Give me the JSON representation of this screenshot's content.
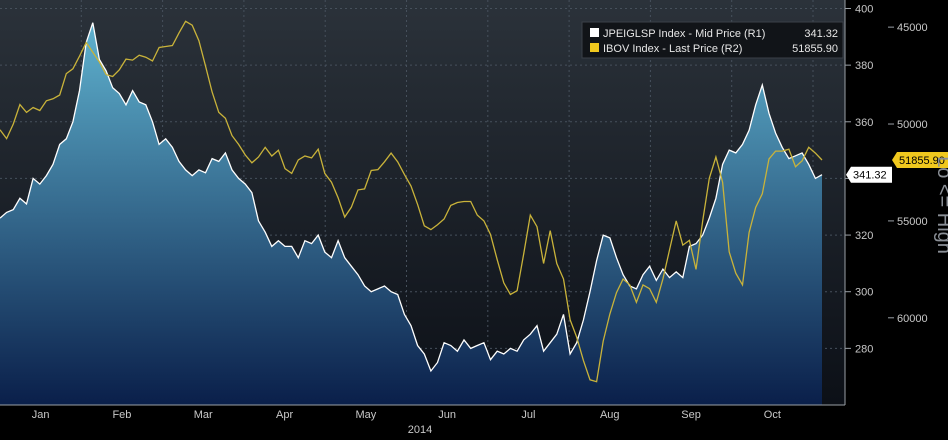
{
  "chart_data": {
    "type": "line",
    "colors": {
      "background_top": "#2b323a",
      "background_bottom": "#0c1017",
      "area_top": "#5fb2cf",
      "area_bottom": "#0a1f4a",
      "white_line": "#ffffff",
      "gold_line": "#c9b33a",
      "gold_badge": "#f0c81e",
      "grid": "#46505c"
    },
    "year_label": "2014",
    "months": [
      "Jan",
      "Feb",
      "Mar",
      "Apr",
      "May",
      "Jun",
      "Jul",
      "Aug",
      "Sep",
      "Oct"
    ],
    "left_axis": {
      "ticks": [
        "400",
        "380",
        "360",
        "340",
        "320",
        "300",
        "280"
      ],
      "range": [
        260,
        403
      ]
    },
    "right_axis": {
      "ticks": [
        "45000",
        "50000",
        "55000",
        "60000"
      ],
      "range": [
        64500,
        43600
      ],
      "inverted": true
    },
    "side_label": "Lo <= High",
    "series": [
      {
        "name": "JPEIGLSP Index - Mid Price (R1)",
        "last_value": "341.32",
        "axis": "left",
        "values": [
          326,
          328,
          329,
          333,
          331,
          340,
          338,
          341,
          345,
          352,
          354,
          360,
          371,
          388,
          395,
          382,
          378,
          372,
          370,
          366,
          371,
          367,
          366,
          360,
          352,
          354,
          351,
          346,
          343,
          341,
          343,
          342,
          347,
          346,
          349,
          343,
          340,
          338,
          335,
          325,
          321,
          316,
          318,
          316,
          316,
          312,
          318,
          317,
          320,
          314,
          312,
          318,
          312,
          309,
          306,
          302,
          300,
          301,
          302,
          300,
          299,
          292,
          288,
          281,
          278,
          272,
          275,
          282,
          281,
          279,
          283,
          280,
          281,
          282,
          276,
          279,
          278,
          280,
          279,
          283,
          285,
          288,
          279,
          282,
          285,
          292,
          278,
          282,
          290,
          300,
          311,
          320,
          319,
          312,
          306,
          302,
          301,
          306,
          309,
          304,
          308,
          305,
          307,
          305,
          316,
          317,
          320,
          326,
          333,
          345,
          350,
          349,
          352,
          357,
          366,
          373,
          363,
          356,
          351,
          347,
          348,
          349,
          345,
          340,
          341.32
        ]
      },
      {
        "name": "IBOV Index - Last Price (R2)",
        "last_value": "51855.90",
        "axis": "right",
        "values": [
          50300,
          50750,
          50000,
          49000,
          49400,
          49150,
          49300,
          48800,
          48700,
          48500,
          47400,
          47150,
          46500,
          45800,
          46300,
          46800,
          47450,
          47550,
          47200,
          46650,
          46700,
          46450,
          46550,
          46750,
          46050,
          46000,
          45950,
          45300,
          44700,
          44900,
          45700,
          47000,
          48350,
          49400,
          49700,
          50600,
          51050,
          51600,
          52000,
          51700,
          51200,
          51650,
          51350,
          52300,
          52550,
          51850,
          51650,
          51750,
          51300,
          52550,
          53000,
          53800,
          54800,
          54300,
          53400,
          53350,
          52400,
          52350,
          51950,
          51500,
          51950,
          52600,
          53200,
          54150,
          55250,
          55450,
          55200,
          54900,
          54200,
          54050,
          54000,
          54000,
          54700,
          55000,
          55700,
          57000,
          58200,
          58800,
          58600,
          56700,
          54700,
          55300,
          57200,
          55500,
          57200,
          58000,
          60100,
          61000,
          62200,
          63200,
          63300,
          61200,
          59800,
          58700,
          58000,
          58300,
          59200,
          58300,
          58500,
          59200,
          58000,
          56500,
          55000,
          56250,
          56000,
          57500,
          55000,
          52800,
          51700,
          53000,
          56600,
          57700,
          58300,
          55600,
          54300,
          53600,
          51800,
          51400,
          51400,
          51300,
          52200,
          51900,
          51200,
          51500,
          51855.9
        ]
      }
    ]
  }
}
